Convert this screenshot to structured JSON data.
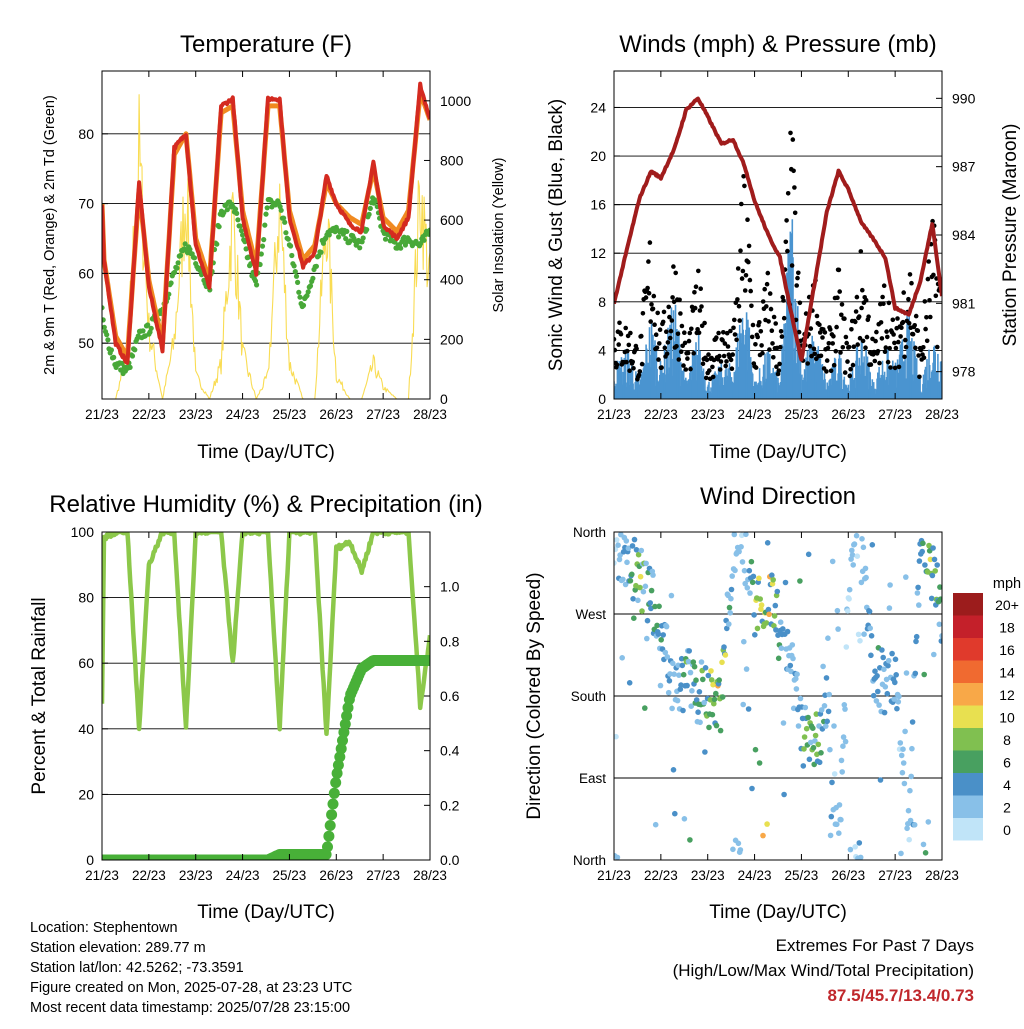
{
  "x_tick_labels": [
    "21/23",
    "22/23",
    "23/23",
    "24/23",
    "25/23",
    "26/23",
    "27/23",
    "28/23"
  ],
  "panels": {
    "temperature": {
      "title": "Temperature (F)",
      "xlabel": "Time (Day/UTC)",
      "ylabel_left": "2m & 9m T (Red, Orange) & 2m Td (Green)",
      "ylabel_right": "Solar Insolation (Yellow)",
      "left_ticks": [
        "50",
        "60",
        "70",
        "80"
      ],
      "right_ticks": [
        "0",
        "200",
        "400",
        "600",
        "800",
        "1000"
      ]
    },
    "winds": {
      "title": "Winds (mph) & Pressure (mb)",
      "xlabel": "Time (Day/UTC)",
      "ylabel_left": "Sonic Wind & Gust (Blue, Black)",
      "ylabel_right": "Station Pressure (Maroon)",
      "left_ticks": [
        "0",
        "4",
        "8",
        "12",
        "16",
        "20",
        "24"
      ],
      "right_ticks": [
        "978",
        "981",
        "984",
        "987",
        "990"
      ]
    },
    "humidity": {
      "title": "Relative Humidity (%) & Precipitation (in)",
      "xlabel": "Time (Day/UTC)",
      "ylabel_left": "Percent & Total Rainfall",
      "left_ticks": [
        "0",
        "20",
        "40",
        "60",
        "80",
        "100"
      ],
      "right_ticks": [
        "0.0",
        "0.2",
        "0.4",
        "0.6",
        "0.8",
        "1.0"
      ]
    },
    "direction": {
      "title": "Wind Direction",
      "xlabel": "Time (Day/UTC)",
      "ylabel_left": "Direction (Colored By Speed)",
      "left_ticks": [
        "North",
        "East",
        "South",
        "West",
        "North"
      ]
    }
  },
  "legend": {
    "title": "mph",
    "labels": [
      "20+",
      "18",
      "16",
      "14",
      "12",
      "10",
      "8",
      "6",
      "4",
      "2",
      "0"
    ],
    "colors": [
      "#9c1c1c",
      "#c4202a",
      "#e03a2c",
      "#f06a30",
      "#f8a848",
      "#e8e050",
      "#80c050",
      "#48a060",
      "#4a90c8",
      "#88c0e8",
      "#c0e4f8"
    ]
  },
  "info": {
    "location": "Location: Stephentown",
    "elevation": "Station elevation: 289.77 m",
    "latlon": "Station lat/lon: 42.5262; -73.3591",
    "created": "Figure created on Mon, 2025-07-28, at 23:23 UTC",
    "recent": "Most recent data timestamp: 2025/07/28 23:15:00"
  },
  "extremes": {
    "title": "Extremes For Past 7 Days",
    "subtitle": "(High/Low/Max Wind/Total Precipitation)",
    "values": "87.5/45.7/13.4/0.73"
  },
  "colors": {
    "temp_2m": "#d42a20",
    "temp_9m": "#f08a20",
    "dewpoint": "#48a838",
    "solar": "#f8d840",
    "wind": "#4a94d0",
    "gust": "#000000",
    "pressure": "#a01c1c",
    "rh": "#8cc84a",
    "precip": "#48b038"
  },
  "chart_data": [
    {
      "type": "line",
      "x": [
        "21/23",
        "22/00",
        "22/06",
        "22/12",
        "22/18",
        "22/23",
        "23/06",
        "23/12",
        "23/18",
        "23/23",
        "24/06",
        "24/12",
        "24/18",
        "24/23",
        "25/06",
        "25/12",
        "25/18",
        "25/23",
        "26/06",
        "26/12",
        "26/18",
        "26/23",
        "27/06",
        "27/12",
        "27/18",
        "27/23",
        "28/06",
        "28/12",
        "28/18",
        "28/23"
      ],
      "series": [
        {
          "name": "2m T",
          "values": [
            70,
            62,
            50,
            47,
            73,
            58,
            49,
            78,
            80,
            64,
            58,
            84,
            85,
            68,
            60,
            85,
            85,
            68,
            61,
            63,
            74,
            70,
            67,
            66,
            76,
            67,
            65,
            68,
            87,
            82
          ]
        },
        {
          "name": "9m T",
          "values": [
            70,
            62,
            51,
            48,
            72,
            59,
            50,
            77,
            80,
            65,
            59,
            83,
            84,
            69,
            61,
            84,
            84,
            69,
            62,
            64,
            73,
            70,
            68,
            67,
            75,
            68,
            66,
            69,
            86,
            82
          ]
        },
        {
          "name": "2m Td",
          "values": [
            55,
            52,
            47,
            46,
            51,
            52,
            55,
            60,
            64,
            62,
            58,
            69,
            70,
            65,
            58,
            70,
            70,
            64,
            55,
            61,
            66,
            66,
            65,
            64,
            71,
            66,
            64,
            65,
            64,
            66
          ]
        }
      ],
      "ylabel": "2m & 9m T (Red, Orange) & 2m Td (Green)",
      "ylim": [
        42,
        89
      ]
    },
    {
      "type": "line",
      "x": [
        "21/23",
        "22/00",
        "22/06",
        "22/12",
        "22/18",
        "22/23",
        "23/06",
        "23/12",
        "23/18",
        "23/23",
        "24/06",
        "24/12",
        "24/18",
        "24/23",
        "25/06",
        "25/12",
        "25/18",
        "25/23",
        "26/06",
        "26/12",
        "26/18",
        "26/23",
        "27/06",
        "27/12",
        "27/18",
        "27/23",
        "28/06",
        "28/12",
        "28/18",
        "28/23"
      ],
      "series": [
        {
          "name": "Solar Insolation",
          "values": [
            0,
            0,
            0,
            200,
            1050,
            300,
            0,
            250,
            900,
            100,
            0,
            150,
            800,
            200,
            0,
            100,
            850,
            150,
            0,
            0,
            800,
            100,
            0,
            0,
            150,
            50,
            0,
            0,
            900,
            500
          ]
        }
      ],
      "ylabel": "Solar Insolation (Yellow)",
      "ylim": [
        0,
        1100
      ]
    },
    {
      "type": "line",
      "x": [
        "21/23",
        "22/06",
        "22/12",
        "22/18",
        "22/23",
        "23/06",
        "23/12",
        "23/18",
        "23/23",
        "24/06",
        "24/12",
        "24/18",
        "24/23",
        "25/06",
        "25/12",
        "25/18",
        "25/23",
        "26/06",
        "26/12",
        "26/18",
        "26/23",
        "27/06",
        "27/12",
        "27/18",
        "27/23",
        "28/06",
        "28/12",
        "28/18",
        "28/23"
      ],
      "series": [
        {
          "name": "Sonic Wind",
          "values": [
            2,
            3,
            1,
            5,
            2,
            6,
            1,
            4,
            1,
            2,
            2,
            7,
            1,
            3,
            1,
            12,
            2,
            4,
            1,
            3,
            1,
            4,
            1,
            3,
            2,
            5,
            1,
            4,
            3
          ]
        },
        {
          "name": "Gust",
          "values": [
            6,
            6,
            4,
            14,
            5,
            12,
            4,
            10,
            4,
            6,
            5,
            19,
            5,
            10,
            4,
            22,
            5,
            10,
            4,
            10,
            4,
            12,
            4,
            10,
            5,
            12,
            4,
            14,
            10
          ]
        },
        {
          "name": "Station Pressure",
          "values": [
            981.0,
            983.5,
            985.6,
            986.8,
            986.5,
            987.8,
            989.5,
            990.0,
            989.2,
            988.0,
            988.2,
            987.0,
            985.5,
            984.0,
            983.0,
            980.5,
            978.5,
            982.0,
            985.0,
            986.8,
            986.0,
            984.5,
            983.8,
            983.0,
            980.8,
            980.5,
            982.0,
            984.5,
            981.3
          ]
        }
      ],
      "ylim": [
        0,
        27
      ]
    },
    {
      "type": "line",
      "x": [
        "21/23",
        "22/00",
        "22/06",
        "22/12",
        "22/18",
        "22/23",
        "23/06",
        "23/12",
        "23/18",
        "23/23",
        "24/06",
        "24/12",
        "24/18",
        "24/23",
        "25/06",
        "25/12",
        "25/18",
        "25/23",
        "26/06",
        "26/12",
        "26/18",
        "26/23",
        "27/06",
        "27/12",
        "27/18",
        "27/23",
        "28/06",
        "28/12",
        "28/18",
        "28/23"
      ],
      "series": [
        {
          "name": "Relative Humidity",
          "values": [
            48,
            98,
            100,
            100,
            40,
            90,
            100,
            100,
            40,
            100,
            100,
            100,
            60,
            100,
            100,
            100,
            40,
            100,
            100,
            100,
            38,
            95,
            97,
            88,
            100,
            100,
            100,
            100,
            47,
            68
          ]
        },
        {
          "name": "Total Precipitation",
          "values": [
            0,
            0,
            0,
            0,
            0,
            0,
            0,
            0,
            0,
            0,
            0,
            0,
            0,
            0,
            0,
            0,
            0.02,
            0.02,
            0.02,
            0.02,
            0.02,
            0.3,
            0.6,
            0.7,
            0.73,
            0.73,
            0.73,
            0.73,
            0.73,
            0.73
          ]
        }
      ],
      "ylabel": "Percent & Total Rainfall",
      "ylim": [
        0,
        100
      ]
    },
    {
      "type": "scatter",
      "x": [
        "21/23",
        "22/06",
        "22/12",
        "22/18",
        "23/06",
        "23/12",
        "23/18",
        "24/00",
        "24/06",
        "24/12",
        "24/18",
        "25/00",
        "25/06",
        "25/12",
        "25/18",
        "26/00",
        "26/06",
        "26/12",
        "26/18",
        "27/00",
        "27/06",
        "27/12",
        "27/18",
        "28/00",
        "28/06",
        "28/12",
        "28/18",
        "28/23"
      ],
      "series": [
        {
          "name": "Direction (deg)",
          "values": [
            350,
            330,
            310,
            290,
            190,
            200,
            185,
            180,
            175,
            350,
            340,
            270,
            300,
            250,
            210,
            140,
            120,
            175,
            10,
            340,
            355,
            200,
            195,
            190,
            30,
            350,
            320,
            270
          ]
        },
        {
          "name": "Speed (mph)",
          "values": [
            2,
            4,
            8,
            6,
            3,
            7,
            5,
            9,
            10,
            3,
            2,
            9,
            11,
            5,
            3,
            6,
            7,
            4,
            2,
            2,
            3,
            5,
            4,
            3,
            2,
            4,
            9,
            5
          ]
        }
      ],
      "ylabel": "Direction (Colored By Speed)",
      "ylim": [
        0,
        360
      ]
    }
  ]
}
